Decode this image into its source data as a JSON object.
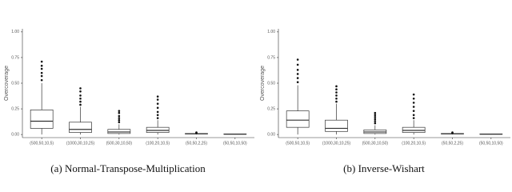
{
  "chart_data": [
    {
      "type": "box",
      "y_label": "Overcoverage",
      "caption": "(a) Normal-Transpose-Multiplication",
      "color": "#333333",
      "categories": [
        "(500,50,10,5)",
        "(1000,30,10,25)",
        "(500,30,10,50)",
        "(100,20,10,5)",
        "(50,50,2,25)",
        "(50,50,10,50)"
      ],
      "boxes": [
        {
          "whislo": 0,
          "q1": 0.06,
          "med": 0.13,
          "q3": 0.24,
          "whishi": 0.5,
          "outliers": [
            0.53,
            0.57,
            0.6,
            0.64,
            0.67,
            0.71
          ]
        },
        {
          "whislo": 0,
          "q1": 0.02,
          "med": 0.05,
          "q3": 0.12,
          "whishi": 0.27,
          "outliers": [
            0.29,
            0.32,
            0.35,
            0.38,
            0.42,
            0.45
          ]
        },
        {
          "whislo": 0,
          "q1": 0.01,
          "med": 0.025,
          "q3": 0.05,
          "whishi": 0.1,
          "outliers": [
            0.12,
            0.14,
            0.16,
            0.18,
            0.21,
            0.23
          ]
        },
        {
          "whislo": 0,
          "q1": 0.02,
          "med": 0.04,
          "q3": 0.07,
          "whishi": 0.14,
          "outliers": [
            0.16,
            0.19,
            0.22,
            0.26,
            0.3,
            0.34,
            0.37
          ]
        },
        {
          "whislo": 0,
          "q1": 0.005,
          "med": 0.008,
          "q3": 0.01,
          "whishi": 0.012,
          "outliers": [
            0.015,
            0.02
          ]
        },
        {
          "whislo": 0,
          "q1": 0.002,
          "med": 0.004,
          "q3": 0.006,
          "whishi": 0.008,
          "outliers": []
        }
      ],
      "ylim": [
        -0.03,
        1.03
      ],
      "yticks": [
        {
          "value": 0,
          "label": "0.00"
        },
        {
          "value": 0.25,
          "label": "0.25"
        },
        {
          "value": 0.5,
          "label": "0.50"
        },
        {
          "value": 0.75,
          "label": "0.75"
        },
        {
          "value": 1,
          "label": "1.00"
        }
      ]
    },
    {
      "type": "box",
      "y_label": "Overcoverage",
      "caption": "(b) Inverse-Wishart",
      "color": "#333333",
      "categories": [
        "(500,50,10,5)",
        "(1000,30,10,25)",
        "(500,30,10,50)",
        "(100,20,10,5)",
        "(50,50,2,25)",
        "(50,50,10,50)"
      ],
      "boxes": [
        {
          "whislo": 0,
          "q1": 0.07,
          "med": 0.14,
          "q3": 0.23,
          "whishi": 0.48,
          "outliers": [
            0.51,
            0.55,
            0.59,
            0.63,
            0.68,
            0.73
          ]
        },
        {
          "whislo": 0,
          "q1": 0.03,
          "med": 0.06,
          "q3": 0.14,
          "whishi": 0.3,
          "outliers": [
            0.32,
            0.35,
            0.38,
            0.41,
            0.44,
            0.47
          ]
        },
        {
          "whislo": 0,
          "q1": 0.01,
          "med": 0.025,
          "q3": 0.045,
          "whishi": 0.09,
          "outliers": [
            0.11,
            0.13,
            0.15,
            0.17,
            0.19,
            0.21
          ]
        },
        {
          "whislo": 0,
          "q1": 0.02,
          "med": 0.04,
          "q3": 0.07,
          "whishi": 0.14,
          "outliers": [
            0.16,
            0.19,
            0.23,
            0.27,
            0.31,
            0.35,
            0.39
          ]
        },
        {
          "whislo": 0,
          "q1": 0.005,
          "med": 0.008,
          "q3": 0.01,
          "whishi": 0.012,
          "outliers": [
            0.015,
            0.02
          ]
        },
        {
          "whislo": 0,
          "q1": 0.002,
          "med": 0.004,
          "q3": 0.006,
          "whishi": 0.008,
          "outliers": []
        }
      ],
      "ylim": [
        -0.03,
        1.03
      ],
      "yticks": [
        {
          "value": 0,
          "label": "0.00"
        },
        {
          "value": 0.25,
          "label": "0.25"
        },
        {
          "value": 0.5,
          "label": "0.50"
        },
        {
          "value": 0.75,
          "label": "0.75"
        },
        {
          "value": 1,
          "label": "1.00"
        }
      ]
    }
  ]
}
